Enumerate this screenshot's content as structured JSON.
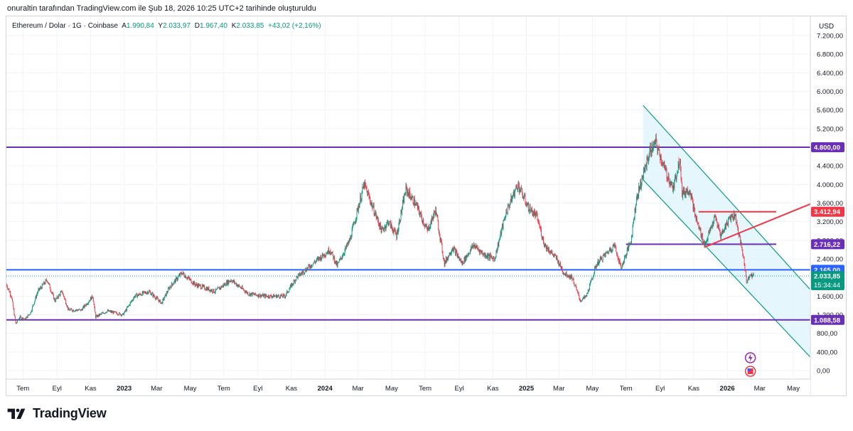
{
  "header": {
    "caption": "onuraltin tarafından TradingView.com ile Şub 18, 2026 10:25 UTC+2 tarihinde oluşturuldu"
  },
  "legend": {
    "symbol": "Ethereum / Dolar · 1G · Coinbase",
    "open_label": "A",
    "open": "1.990,84",
    "high_label": "Y",
    "high": "2.033,97",
    "low_label": "D",
    "low": "1.967,40",
    "close_label": "K",
    "close": "2.033,85",
    "change": "+43,02 (+2,16%)"
  },
  "colors": {
    "up": "#089981",
    "down": "#f23645",
    "purple_line": "#6a2fb8",
    "blue_line": "#2962ff",
    "channel": "#089981",
    "channel_fill": "#e0f4fb",
    "red_line": "#f23645"
  },
  "footer": {
    "logo_icon": "tradingview-logo-icon",
    "logo_text": "TradingView"
  },
  "icons": [
    "lightning-icon",
    "us-flag-icon"
  ],
  "chart_data": {
    "type": "candlestick",
    "symbol": "ETH/USD",
    "timeframe": "1G",
    "currency": "USD",
    "y_axis_ticks": [
      "0,00",
      "400,00",
      "800,00",
      "1.200,00",
      "1.600,00",
      "2.000,00",
      "2.400,00",
      "2.800,00",
      "3.200,00",
      "3.600,00",
      "4.000,00",
      "4.400,00",
      "4.800,00",
      "5.200,00",
      "5.600,00",
      "6.000,00",
      "6.400,00",
      "6.800,00",
      "7.200,00"
    ],
    "y_axis_tick_values": [
      0,
      400,
      800,
      1200,
      1600,
      2000,
      2400,
      2800,
      3200,
      3600,
      4000,
      4400,
      4800,
      5200,
      5600,
      6000,
      6400,
      6800,
      7200
    ],
    "x_axis_ticks": [
      {
        "label": "Tem",
        "date": "2022-07-01",
        "bold": false
      },
      {
        "label": "Eyl",
        "date": "2022-09-01",
        "bold": false
      },
      {
        "label": "Kas",
        "date": "2022-11-01",
        "bold": false
      },
      {
        "label": "2023",
        "date": "2023-01-01",
        "bold": true
      },
      {
        "label": "Mar",
        "date": "2023-03-01",
        "bold": false
      },
      {
        "label": "May",
        "date": "2023-05-01",
        "bold": false
      },
      {
        "label": "Tem",
        "date": "2023-07-01",
        "bold": false
      },
      {
        "label": "Eyl",
        "date": "2023-09-01",
        "bold": false
      },
      {
        "label": "Kas",
        "date": "2023-11-01",
        "bold": false
      },
      {
        "label": "2024",
        "date": "2024-01-01",
        "bold": true
      },
      {
        "label": "Mar",
        "date": "2024-03-01",
        "bold": false
      },
      {
        "label": "May",
        "date": "2024-05-01",
        "bold": false
      },
      {
        "label": "Tem",
        "date": "2024-07-01",
        "bold": false
      },
      {
        "label": "Eyl",
        "date": "2024-09-01",
        "bold": false
      },
      {
        "label": "Kas",
        "date": "2024-11-01",
        "bold": false
      },
      {
        "label": "2025",
        "date": "2025-01-01",
        "bold": true
      },
      {
        "label": "Mar",
        "date": "2025-03-01",
        "bold": false
      },
      {
        "label": "May",
        "date": "2025-05-01",
        "bold": false
      },
      {
        "label": "Tem",
        "date": "2025-07-01",
        "bold": false
      },
      {
        "label": "Eyl",
        "date": "2025-09-01",
        "bold": false
      },
      {
        "label": "Kas",
        "date": "2025-11-01",
        "bold": false
      },
      {
        "label": "2026",
        "date": "2026-01-01",
        "bold": true
      },
      {
        "label": "Mar",
        "date": "2026-03-01",
        "bold": false
      },
      {
        "label": "May",
        "date": "2026-05-01",
        "bold": false
      }
    ],
    "x_range": [
      "2022-06-01",
      "2026-06-01"
    ],
    "price_path": [
      [
        "2022-06-01",
        1850
      ],
      [
        "2022-06-10",
        1600
      ],
      [
        "2022-06-18",
        1000
      ],
      [
        "2022-06-25",
        1150
      ],
      [
        "2022-07-05",
        1100
      ],
      [
        "2022-07-15",
        1250
      ],
      [
        "2022-07-28",
        1700
      ],
      [
        "2022-08-14",
        1950
      ],
      [
        "2022-08-28",
        1500
      ],
      [
        "2022-09-10",
        1700
      ],
      [
        "2022-09-22",
        1300
      ],
      [
        "2022-10-15",
        1300
      ],
      [
        "2022-11-05",
        1600
      ],
      [
        "2022-11-10",
        1150
      ],
      [
        "2022-12-01",
        1280
      ],
      [
        "2022-12-30",
        1200
      ],
      [
        "2023-01-20",
        1600
      ],
      [
        "2023-02-15",
        1700
      ],
      [
        "2023-03-10",
        1450
      ],
      [
        "2023-03-25",
        1800
      ],
      [
        "2023-04-16",
        2100
      ],
      [
        "2023-05-10",
        1850
      ],
      [
        "2023-06-15",
        1700
      ],
      [
        "2023-07-14",
        1950
      ],
      [
        "2023-08-15",
        1650
      ],
      [
        "2023-09-15",
        1600
      ],
      [
        "2023-10-20",
        1600
      ],
      [
        "2023-11-10",
        2000
      ],
      [
        "2023-12-10",
        2300
      ],
      [
        "2024-01-10",
        2600
      ],
      [
        "2024-01-23",
        2250
      ],
      [
        "2024-02-15",
        2800
      ],
      [
        "2024-03-12",
        4000
      ],
      [
        "2024-03-25",
        3600
      ],
      [
        "2024-04-13",
        3000
      ],
      [
        "2024-04-25",
        3200
      ],
      [
        "2024-05-10",
        2900
      ],
      [
        "2024-05-27",
        3900
      ],
      [
        "2024-06-15",
        3550
      ],
      [
        "2024-07-05",
        3000
      ],
      [
        "2024-07-20",
        3450
      ],
      [
        "2024-08-05",
        2300
      ],
      [
        "2024-08-20",
        2650
      ],
      [
        "2024-09-06",
        2300
      ],
      [
        "2024-09-27",
        2700
      ],
      [
        "2024-10-15",
        2500
      ],
      [
        "2024-11-04",
        2400
      ],
      [
        "2024-11-25",
        3400
      ],
      [
        "2024-12-16",
        4000
      ],
      [
        "2025-01-05",
        3500
      ],
      [
        "2025-01-20",
        3300
      ],
      [
        "2025-02-03",
        2700
      ],
      [
        "2025-02-25",
        2400
      ],
      [
        "2025-03-10",
        2100
      ],
      [
        "2025-03-25",
        2000
      ],
      [
        "2025-04-09",
        1500
      ],
      [
        "2025-04-20",
        1600
      ],
      [
        "2025-05-09",
        2300
      ],
      [
        "2025-06-10",
        2700
      ],
      [
        "2025-06-22",
        2200
      ],
      [
        "2025-07-10",
        2800
      ],
      [
        "2025-07-20",
        3700
      ],
      [
        "2025-08-13",
        4700
      ],
      [
        "2025-08-24",
        4900
      ],
      [
        "2025-09-10",
        4300
      ],
      [
        "2025-09-25",
        3900
      ],
      [
        "2025-10-07",
        4600
      ],
      [
        "2025-10-11",
        3800
      ],
      [
        "2025-10-25",
        3900
      ],
      [
        "2025-11-04",
        3300
      ],
      [
        "2025-11-21",
        2700
      ],
      [
        "2025-12-10",
        3300
      ],
      [
        "2025-12-20",
        2900
      ],
      [
        "2026-01-06",
        3300
      ],
      [
        "2026-01-15",
        3350
      ],
      [
        "2026-01-31",
        2400
      ],
      [
        "2026-02-05",
        1900
      ],
      [
        "2026-02-10",
        2050
      ],
      [
        "2026-02-18",
        2034
      ]
    ],
    "horizontal_lines": [
      {
        "price": 4800.0,
        "label": "4.800,00",
        "color": "#6a2fb8"
      },
      {
        "price": 2165.0,
        "label": "2.165,00",
        "color": "#2962ff"
      },
      {
        "price": 1088.58,
        "label": "1.088,58",
        "color": "#6a2fb8"
      }
    ],
    "segment_lines": [
      {
        "from": [
          "2025-11-10",
          3412.94
        ],
        "to": [
          "2026-03-31",
          3412.94
        ],
        "label": "3.412,94",
        "color": "#f23645"
      },
      {
        "from": [
          "2025-07-01",
          2716.22
        ],
        "to": [
          "2026-03-31",
          2716.22
        ],
        "label": "2.716,22",
        "color": "#6a2fb8"
      }
    ],
    "trend_lines": [
      {
        "from": [
          "2025-11-20",
          2650
        ],
        "to": [
          "2026-06-01",
          3580
        ],
        "color": "#f23645"
      }
    ],
    "channel": {
      "upper": {
        "from": [
          "2025-08-01",
          5700
        ],
        "to": [
          "2026-05-31",
          1750
        ]
      },
      "lower": {
        "from": [
          "2025-08-01",
          4100
        ],
        "to": [
          "2026-05-31",
          300
        ]
      },
      "color": "#089981"
    },
    "current_price": {
      "price": "2.033,85",
      "countdown": "15:34:44"
    },
    "last_price_value": 2033.85
  }
}
